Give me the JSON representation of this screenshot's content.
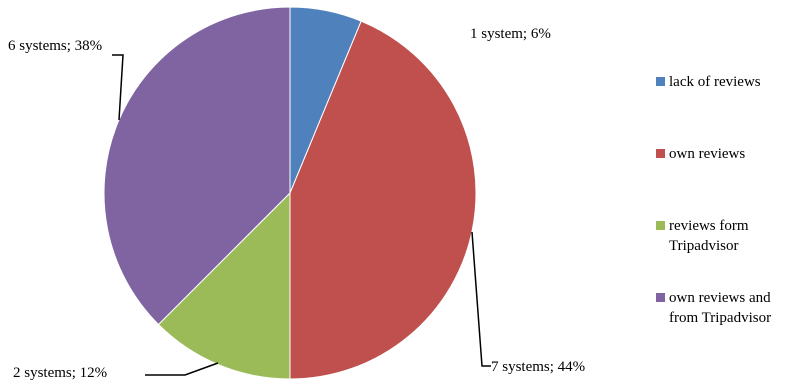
{
  "chart_data": {
    "type": "pie",
    "title": "",
    "slices": [
      {
        "label": "lack of reviews",
        "value": 1,
        "data_label": "1 system; 6%",
        "color": "#4F81BD"
      },
      {
        "label": "own reviews",
        "value": 7,
        "data_label": "7 systems; 44%",
        "color": "#C0504D"
      },
      {
        "label": "reviews form Tripadvisor",
        "value": 2,
        "data_label": "2 systems; 12%",
        "color": "#9BBB59"
      },
      {
        "label": "own reviews and from Tripadvisor",
        "value": 6,
        "data_label": "6 systems; 38%",
        "color": "#8064A2"
      }
    ],
    "legend_position": "right"
  }
}
